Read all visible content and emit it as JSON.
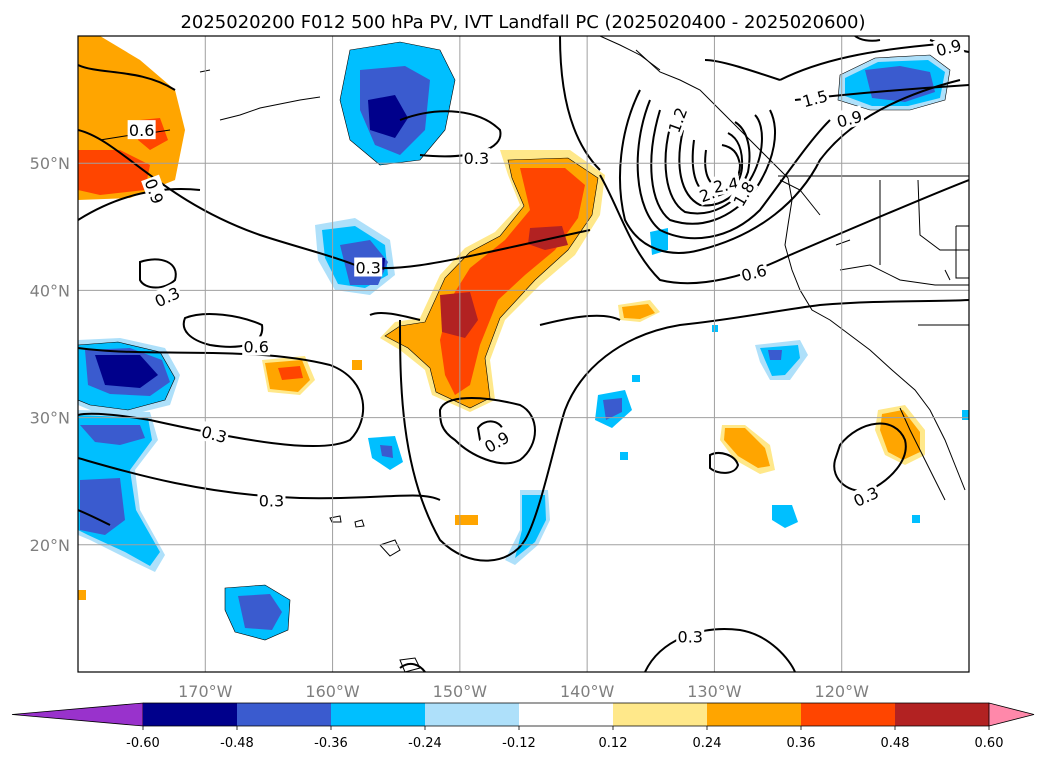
{
  "title": "2025020200 F012 500 hPa PV, IVT Landfall PC (2025020400 - 2025020600)",
  "map": {
    "lon_range": [
      -180,
      -110
    ],
    "lat_range": [
      10,
      60
    ],
    "lon_ticks": [
      {
        "value": -170,
        "label": "170°W"
      },
      {
        "value": -160,
        "label": "160°W"
      },
      {
        "value": -150,
        "label": "150°W"
      },
      {
        "value": -140,
        "label": "140°W"
      },
      {
        "value": -130,
        "label": "130°W"
      },
      {
        "value": -120,
        "label": "120°W"
      }
    ],
    "lat_ticks": [
      {
        "value": 20,
        "label": "20°N"
      },
      {
        "value": 30,
        "label": "30°N"
      },
      {
        "value": 40,
        "label": "40°N"
      },
      {
        "value": 50,
        "label": "50°N"
      }
    ],
    "gridlines": true
  },
  "contour_labels": [
    {
      "text": "0.6",
      "lon": -175,
      "lat": 52.6
    },
    {
      "text": "0.9",
      "lon": -174,
      "lat": 47.8,
      "rot": 70
    },
    {
      "text": "0.3",
      "lon": -148.7,
      "lat": 50.4
    },
    {
      "text": "0.3",
      "lon": -173,
      "lat": 39.5,
      "rot": -25
    },
    {
      "text": "0.3",
      "lon": -157.2,
      "lat": 41.8
    },
    {
      "text": "0.6",
      "lon": -166,
      "lat": 35.6
    },
    {
      "text": "0.3",
      "lon": -169.3,
      "lat": 28.7,
      "rot": 15
    },
    {
      "text": "0.3",
      "lon": -164.8,
      "lat": 23.5
    },
    {
      "text": "0.9",
      "lon": -147.1,
      "lat": 28.1,
      "rot": -30
    },
    {
      "text": "0.3",
      "lon": -131.9,
      "lat": 12.8
    },
    {
      "text": "0.6",
      "lon": -126.9,
      "lat": 41.4,
      "rot": -15
    },
    {
      "text": "0.3",
      "lon": -118.1,
      "lat": 23.8,
      "rot": -25
    },
    {
      "text": "1.2",
      "lon": -132.9,
      "lat": 53.4,
      "rot": -70
    },
    {
      "text": "2.1",
      "lon": -130.2,
      "lat": 47.7,
      "rot": -20
    },
    {
      "text": "2.4",
      "lon": -129.1,
      "lat": 48.3,
      "rot": -10
    },
    {
      "text": "1.8",
      "lon": -127.7,
      "lat": 47.6,
      "rot": -60
    },
    {
      "text": "1.5",
      "lon": -122.1,
      "lat": 55.1,
      "rot": -15
    },
    {
      "text": "0.9",
      "lon": -119.4,
      "lat": 53.5,
      "rot": -15
    },
    {
      "text": "0.9",
      "lon": -111.6,
      "lat": 59.1,
      "rot": -15
    }
  ],
  "colorbar": {
    "levels": [
      "-0.60",
      "-0.48",
      "-0.36",
      "-0.24",
      "-0.12",
      "0.12",
      "0.24",
      "0.36",
      "0.48",
      "0.60"
    ],
    "colors": [
      "#9932cc",
      "#00008b",
      "#3a5bcf",
      "#00bfff",
      "#aee0fa",
      "#ffffff",
      "#ffe88a",
      "#ffa500",
      "#ff4500",
      "#b22222",
      "#ff88aa"
    ],
    "extend": "both"
  }
}
